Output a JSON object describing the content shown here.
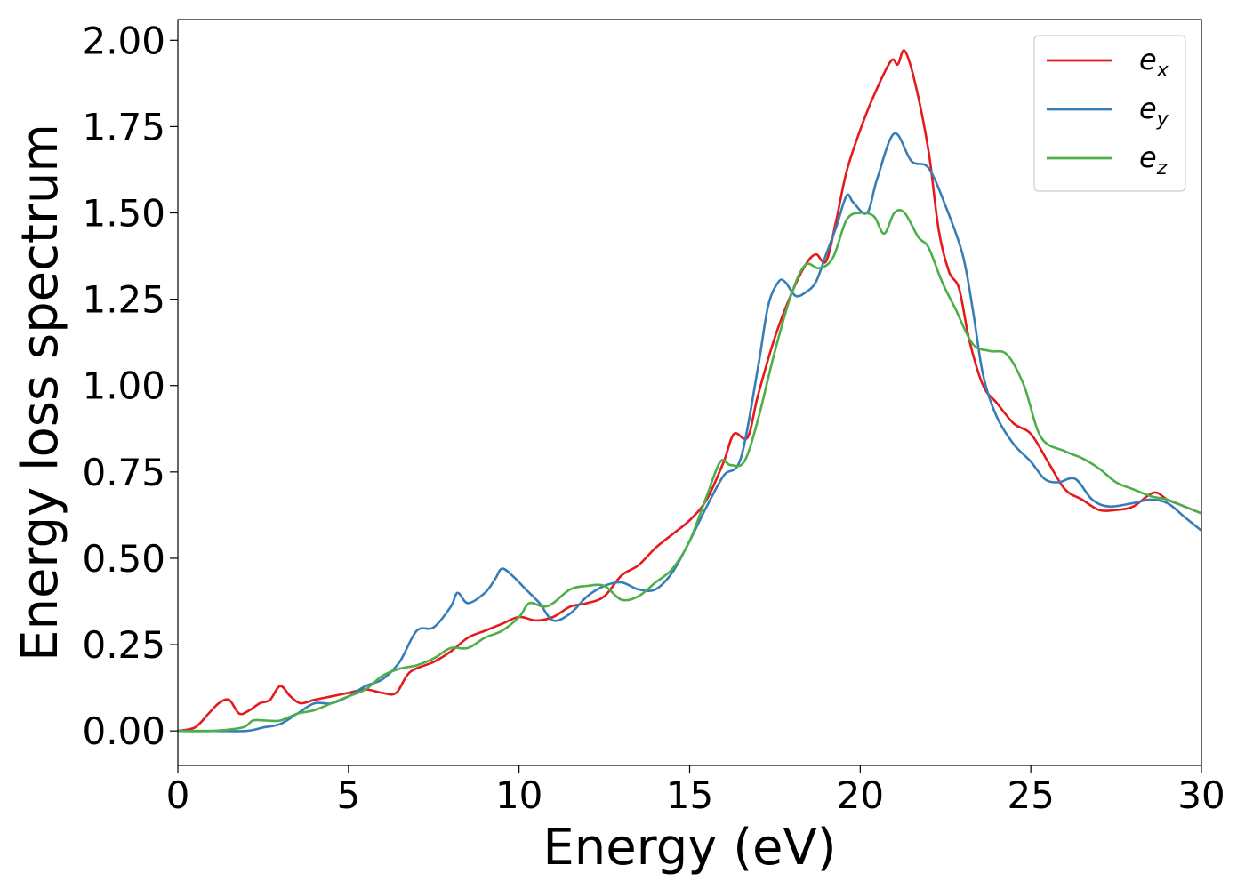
{
  "chart_data": {
    "type": "line",
    "xlabel": "Energy (eV)",
    "ylabel": "Energy loss spectrum",
    "xlim": [
      0,
      30
    ],
    "ylim": [
      -0.1,
      2.06
    ],
    "xticks": [
      0,
      5,
      10,
      15,
      20,
      25,
      30
    ],
    "xtick_labels": [
      "0",
      "5",
      "10",
      "15",
      "20",
      "25",
      "30"
    ],
    "yticks": [
      0,
      0.25,
      0.5,
      0.75,
      1.0,
      1.25,
      1.5,
      1.75,
      2.0
    ],
    "ytick_labels": [
      "0.00",
      "0.25",
      "0.50",
      "0.75",
      "1.00",
      "1.25",
      "1.50",
      "1.75",
      "2.00"
    ],
    "grid": false,
    "legend_position": "top-right",
    "series": [
      {
        "name": "e",
        "subscript": "x",
        "color": "#e41a1c",
        "points": [
          [
            0,
            0
          ],
          [
            0.5,
            0.01
          ],
          [
            0.9,
            0.05
          ],
          [
            1.2,
            0.08
          ],
          [
            1.5,
            0.09
          ],
          [
            1.8,
            0.05
          ],
          [
            2.1,
            0.06
          ],
          [
            2.4,
            0.08
          ],
          [
            2.7,
            0.09
          ],
          [
            3.0,
            0.13
          ],
          [
            3.3,
            0.1
          ],
          [
            3.6,
            0.08
          ],
          [
            4.0,
            0.09
          ],
          [
            4.5,
            0.1
          ],
          [
            5.0,
            0.11
          ],
          [
            5.5,
            0.12
          ],
          [
            6.0,
            0.11
          ],
          [
            6.4,
            0.11
          ],
          [
            6.8,
            0.17
          ],
          [
            7.5,
            0.2
          ],
          [
            8.0,
            0.23
          ],
          [
            8.5,
            0.27
          ],
          [
            9.0,
            0.29
          ],
          [
            9.5,
            0.31
          ],
          [
            10.0,
            0.33
          ],
          [
            10.5,
            0.32
          ],
          [
            11.0,
            0.33
          ],
          [
            11.5,
            0.36
          ],
          [
            12.0,
            0.37
          ],
          [
            12.5,
            0.39
          ],
          [
            13.0,
            0.45
          ],
          [
            13.5,
            0.48
          ],
          [
            14.0,
            0.53
          ],
          [
            14.5,
            0.57
          ],
          [
            15.0,
            0.61
          ],
          [
            15.5,
            0.67
          ],
          [
            16.0,
            0.78
          ],
          [
            16.3,
            0.86
          ],
          [
            16.7,
            0.85
          ],
          [
            17.0,
            0.97
          ],
          [
            17.5,
            1.14
          ],
          [
            18.0,
            1.27
          ],
          [
            18.4,
            1.35
          ],
          [
            18.7,
            1.38
          ],
          [
            19.0,
            1.36
          ],
          [
            19.3,
            1.48
          ],
          [
            19.6,
            1.62
          ],
          [
            20.0,
            1.74
          ],
          [
            20.4,
            1.84
          ],
          [
            20.9,
            1.94
          ],
          [
            21.1,
            1.93
          ],
          [
            21.3,
            1.97
          ],
          [
            21.6,
            1.88
          ],
          [
            22.0,
            1.68
          ],
          [
            22.3,
            1.45
          ],
          [
            22.6,
            1.33
          ],
          [
            22.9,
            1.28
          ],
          [
            23.2,
            1.13
          ],
          [
            23.6,
            1.0
          ],
          [
            24.0,
            0.95
          ],
          [
            24.5,
            0.89
          ],
          [
            25.0,
            0.86
          ],
          [
            25.5,
            0.78
          ],
          [
            26.0,
            0.7
          ],
          [
            26.5,
            0.67
          ],
          [
            27.0,
            0.64
          ],
          [
            27.5,
            0.64
          ],
          [
            28.0,
            0.65
          ],
          [
            28.6,
            0.69
          ],
          [
            29.0,
            0.67
          ],
          [
            29.5,
            0.65
          ],
          [
            30.0,
            0.63
          ]
        ]
      },
      {
        "name": "e",
        "subscript": "y",
        "color": "#377eb8",
        "points": [
          [
            0,
            0
          ],
          [
            1.0,
            0.0
          ],
          [
            2.0,
            0.0
          ],
          [
            2.5,
            0.01
          ],
          [
            3.0,
            0.02
          ],
          [
            3.5,
            0.05
          ],
          [
            4.0,
            0.08
          ],
          [
            4.5,
            0.08
          ],
          [
            5.0,
            0.1
          ],
          [
            5.5,
            0.13
          ],
          [
            6.0,
            0.15
          ],
          [
            6.5,
            0.2
          ],
          [
            7.0,
            0.29
          ],
          [
            7.5,
            0.3
          ],
          [
            8.0,
            0.36
          ],
          [
            8.2,
            0.4
          ],
          [
            8.5,
            0.37
          ],
          [
            9.0,
            0.4
          ],
          [
            9.3,
            0.44
          ],
          [
            9.5,
            0.47
          ],
          [
            9.8,
            0.45
          ],
          [
            10.2,
            0.41
          ],
          [
            10.6,
            0.37
          ],
          [
            11.0,
            0.32
          ],
          [
            11.5,
            0.34
          ],
          [
            12.0,
            0.39
          ],
          [
            12.5,
            0.42
          ],
          [
            13.0,
            0.43
          ],
          [
            13.5,
            0.41
          ],
          [
            14.0,
            0.41
          ],
          [
            14.5,
            0.46
          ],
          [
            15.0,
            0.55
          ],
          [
            15.5,
            0.65
          ],
          [
            16.0,
            0.74
          ],
          [
            16.5,
            0.79
          ],
          [
            17.0,
            1.05
          ],
          [
            17.3,
            1.23
          ],
          [
            17.6,
            1.3
          ],
          [
            17.8,
            1.3
          ],
          [
            18.1,
            1.26
          ],
          [
            18.4,
            1.27
          ],
          [
            18.7,
            1.3
          ],
          [
            19.0,
            1.38
          ],
          [
            19.3,
            1.46
          ],
          [
            19.6,
            1.55
          ],
          [
            19.8,
            1.53
          ],
          [
            20.2,
            1.5
          ],
          [
            20.5,
            1.6
          ],
          [
            21.0,
            1.73
          ],
          [
            21.5,
            1.65
          ],
          [
            22.0,
            1.63
          ],
          [
            22.5,
            1.52
          ],
          [
            23.0,
            1.38
          ],
          [
            23.3,
            1.22
          ],
          [
            23.6,
            1.03
          ],
          [
            24.0,
            0.91
          ],
          [
            24.5,
            0.83
          ],
          [
            25.0,
            0.78
          ],
          [
            25.4,
            0.73
          ],
          [
            25.8,
            0.72
          ],
          [
            26.3,
            0.73
          ],
          [
            26.8,
            0.67
          ],
          [
            27.3,
            0.65
          ],
          [
            28.0,
            0.66
          ],
          [
            28.5,
            0.67
          ],
          [
            29.0,
            0.66
          ],
          [
            29.5,
            0.62
          ],
          [
            30.0,
            0.58
          ]
        ]
      },
      {
        "name": "e",
        "subscript": "z",
        "color": "#4daf4a",
        "points": [
          [
            0,
            0
          ],
          [
            1.0,
            0.0
          ],
          [
            1.9,
            0.01
          ],
          [
            2.2,
            0.03
          ],
          [
            2.6,
            0.03
          ],
          [
            3.0,
            0.03
          ],
          [
            3.5,
            0.05
          ],
          [
            4.0,
            0.06
          ],
          [
            4.5,
            0.08
          ],
          [
            5.0,
            0.1
          ],
          [
            5.5,
            0.12
          ],
          [
            6.0,
            0.16
          ],
          [
            6.5,
            0.18
          ],
          [
            7.0,
            0.19
          ],
          [
            7.5,
            0.21
          ],
          [
            8.0,
            0.24
          ],
          [
            8.5,
            0.24
          ],
          [
            9.0,
            0.27
          ],
          [
            9.5,
            0.29
          ],
          [
            10.0,
            0.33
          ],
          [
            10.3,
            0.37
          ],
          [
            10.7,
            0.36
          ],
          [
            11.0,
            0.37
          ],
          [
            11.5,
            0.41
          ],
          [
            12.0,
            0.42
          ],
          [
            12.5,
            0.42
          ],
          [
            13.0,
            0.38
          ],
          [
            13.5,
            0.39
          ],
          [
            14.0,
            0.43
          ],
          [
            14.5,
            0.47
          ],
          [
            15.0,
            0.55
          ],
          [
            15.5,
            0.68
          ],
          [
            15.9,
            0.78
          ],
          [
            16.2,
            0.77
          ],
          [
            16.6,
            0.78
          ],
          [
            17.0,
            0.9
          ],
          [
            17.5,
            1.1
          ],
          [
            18.0,
            1.27
          ],
          [
            18.4,
            1.35
          ],
          [
            18.8,
            1.34
          ],
          [
            19.2,
            1.37
          ],
          [
            19.6,
            1.48
          ],
          [
            20.0,
            1.5
          ],
          [
            20.4,
            1.49
          ],
          [
            20.7,
            1.44
          ],
          [
            21.0,
            1.5
          ],
          [
            21.3,
            1.5
          ],
          [
            21.7,
            1.43
          ],
          [
            22.0,
            1.4
          ],
          [
            22.4,
            1.3
          ],
          [
            22.8,
            1.22
          ],
          [
            23.3,
            1.12
          ],
          [
            23.8,
            1.1
          ],
          [
            24.3,
            1.09
          ],
          [
            24.8,
            1.0
          ],
          [
            25.3,
            0.85
          ],
          [
            26.0,
            0.81
          ],
          [
            26.5,
            0.79
          ],
          [
            27.0,
            0.76
          ],
          [
            27.5,
            0.72
          ],
          [
            28.0,
            0.7
          ],
          [
            28.5,
            0.68
          ],
          [
            29.0,
            0.67
          ],
          [
            29.5,
            0.65
          ],
          [
            30.0,
            0.63
          ]
        ]
      }
    ]
  }
}
